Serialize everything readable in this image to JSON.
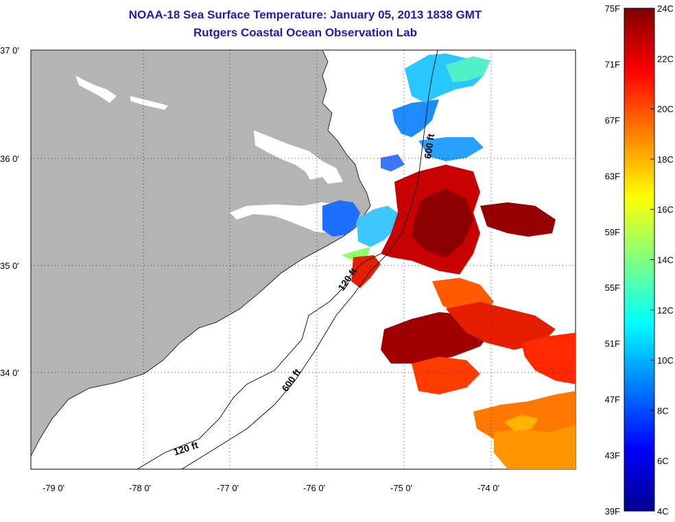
{
  "header": {
    "title": "NOAA-18 Sea Surface Temperature:  January 05, 2013 1838 GMT",
    "subtitle": "Rutgers Coastal Ocean Observation Lab"
  },
  "axes": {
    "lat_ticks": [
      "37 0'",
      "36 0'",
      "35 0'",
      "34 0'"
    ],
    "lon_ticks": [
      "-79 0'",
      "-78 0'",
      "-77 0'",
      "-76 0'",
      "-75 0'",
      "-74 0'"
    ]
  },
  "contours": {
    "shelf_120_a": "120 ft",
    "shelf_120_b": "120 ft",
    "shelf_600_a": "600 ft",
    "shelf_600_b": "600 ft"
  },
  "colorbar": {
    "fahrenheit": [
      "75F",
      "71F",
      "67F",
      "63F",
      "59F",
      "55F",
      "51F",
      "47F",
      "43F",
      "39F"
    ],
    "celsius": [
      "24C",
      "22C",
      "20C",
      "18C",
      "16C",
      "14C",
      "12C",
      "10C",
      "8C",
      "6C",
      "4C"
    ]
  },
  "colors": {
    "land": "#b4b4b4",
    "title": "#1c1cb4"
  }
}
